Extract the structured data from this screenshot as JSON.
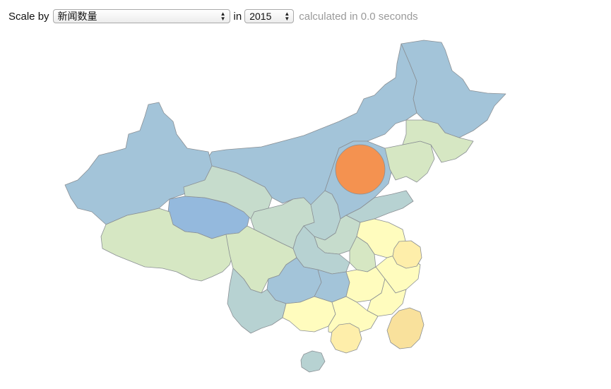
{
  "toolbar": {
    "scale_label": "Scale by",
    "metric_value": "新闻数量",
    "in_label": "in",
    "year_value": "2015",
    "status_text": "calculated in 0.0 seconds"
  },
  "icons": {
    "select_arrows": "up-down-chevron-icon"
  },
  "colors": {
    "blue": "#a3c4d9",
    "blue_strong": "#94b9dd",
    "teal": "#b7d2d2",
    "green_gray": "#c6dccc",
    "pale_green": "#d6e7c3",
    "pale_yellow": "#fffcbe",
    "light_yellow": "#feeeaa",
    "yellow_orange": "#f9e19c",
    "orange": "#f49250"
  }
}
